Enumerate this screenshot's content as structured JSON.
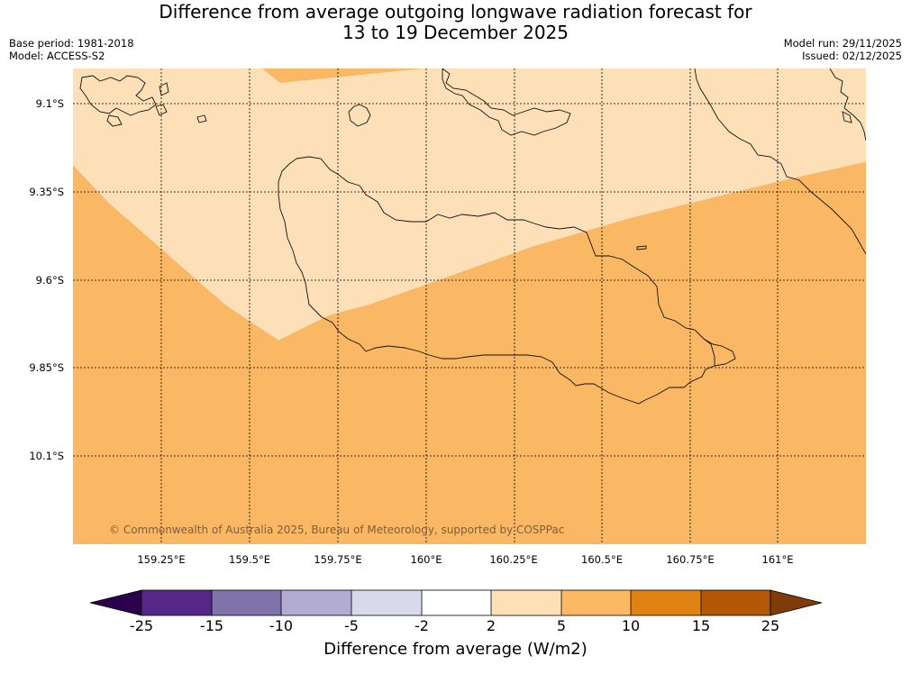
{
  "header": {
    "title_line1": "Difference from average outgoing longwave radiation forecast for",
    "title_line2": "13 to 19 December 2025",
    "base_period": "Base period: 1981-2018",
    "model": "Model: ACCESS-S2",
    "model_run": "Model run: 29/11/2025",
    "issued": "Issued: 02/12/2025"
  },
  "map": {
    "latitude_labels": [
      "9.1°S",
      "9.35°S",
      "9.6°S",
      "9.85°S",
      "10.1°S"
    ],
    "longitude_labels": [
      "159.25°E",
      "159.5°E",
      "159.75°E",
      "160°E",
      "160.25°E",
      "160.5°E",
      "160.75°E",
      "161°E"
    ],
    "copyright": "© Commonwealth of Australia 2025, Bureau of Meteorology, supported by COSPPac",
    "region_colors": {
      "light_band": "#fde0b8",
      "orange_band": "#fbb864"
    }
  },
  "colorbar": {
    "tick_labels": [
      "-25",
      "-15",
      "-10",
      "-5",
      "-2",
      "2",
      "5",
      "10",
      "15",
      "25"
    ],
    "colors": [
      "#2d004b",
      "#542788",
      "#8073ac",
      "#b2abd2",
      "#d8daeb",
      "#ffffff",
      "#fee0b6",
      "#fdb863",
      "#e08214",
      "#b35806",
      "#7f3b08"
    ],
    "label": "Difference from average (W/m2)"
  }
}
